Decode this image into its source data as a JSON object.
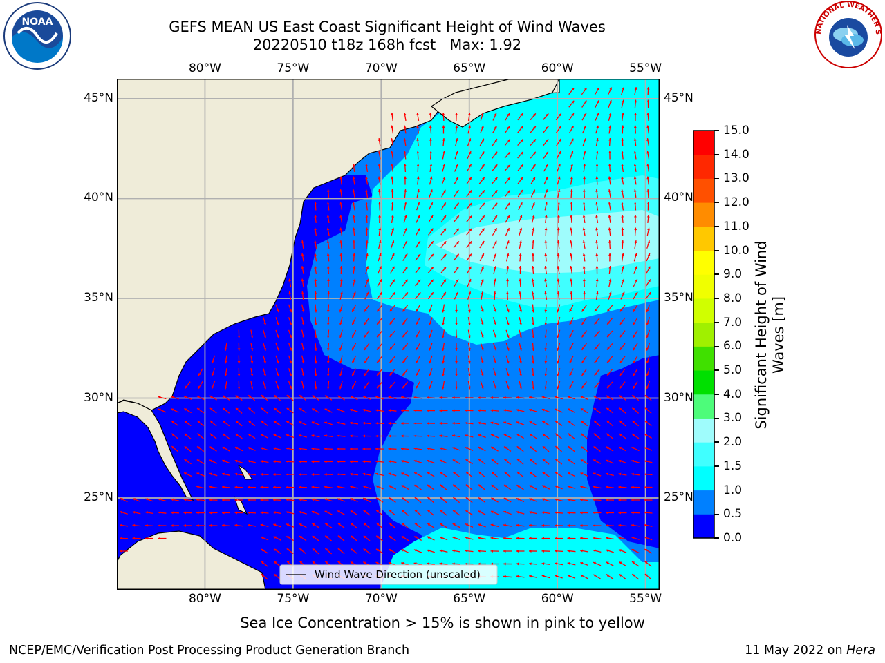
{
  "title_line1": "GEFS MEAN US East Coast Significant Height of Wind Waves",
  "title_line2": "20220510 t18z 168h fcst   Max: 1.92",
  "subtitle": "Sea Ice Concentration > 15% is shown in pink to yellow",
  "footer_left": "NCEP/EMC/Verification Post Processing Product Generation Branch",
  "footer_right_date": "11 May 2022 on ",
  "footer_right_host": "Hera",
  "legend_label": "Wind Wave Direction (unscaled)",
  "colorbar_label_line1": "Significant Height of Wind",
  "colorbar_label_line2": "Waves [m]",
  "colorbar_ticks": [
    "0.0",
    "0.5",
    "1.0",
    "1.5",
    "2.0",
    "3.0",
    "4.0",
    "5.0",
    "6.0",
    "7.0",
    "8.0",
    "9.0",
    "10.0",
    "11.0",
    "12.0",
    "13.0",
    "14.0",
    "15.0"
  ],
  "colorbar_colors": [
    "#0000ff",
    "#0080ff",
    "#00ffff",
    "#40ffff",
    "#9ffcfc",
    "#4dfc7a",
    "#00e000",
    "#40e000",
    "#a0f000",
    "#d0ff00",
    "#f0ff00",
    "#ffff00",
    "#ffc800",
    "#ff8c00",
    "#ff5000",
    "#ff2800",
    "#ff0000"
  ],
  "lon_labels": [
    "80°W",
    "75°W",
    "70°W",
    "65°W",
    "60°W",
    "55°W"
  ],
  "lat_labels": [
    "45°N",
    "40°N",
    "35°N",
    "30°N",
    "25°N"
  ],
  "logos": {
    "noaa_text": "NOAA",
    "nws_text": "NATIONAL WEATHER SERVICE"
  },
  "colors": {
    "land": "#efecd9",
    "arrow": "#ff0000",
    "grid": "#b0b0b0"
  },
  "map_extent": {
    "lon_min": -85,
    "lon_max": -54.2,
    "lat_min": 20.4,
    "lat_max": 46
  }
}
